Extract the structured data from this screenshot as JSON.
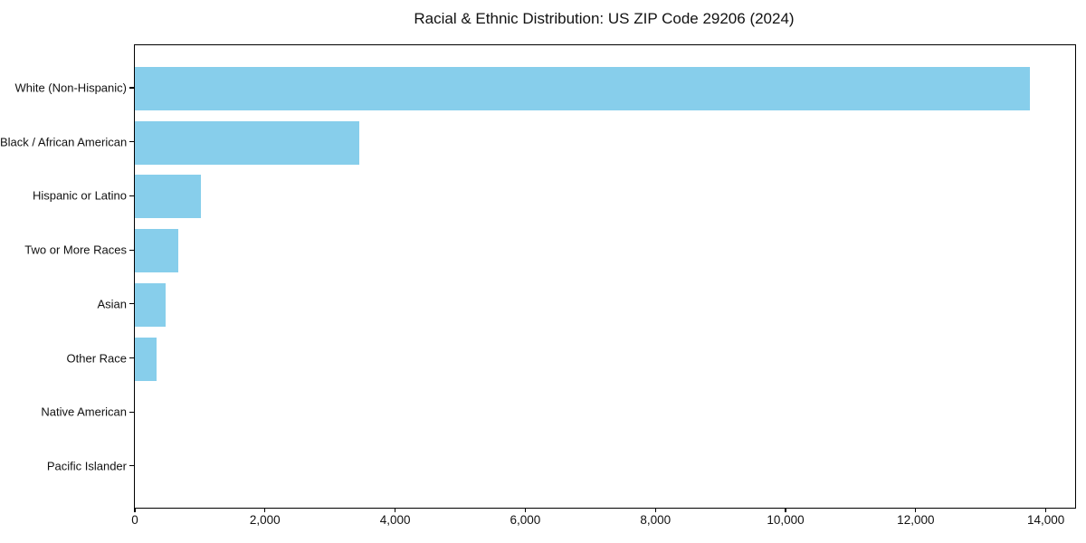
{
  "chart_data": {
    "type": "bar",
    "orientation": "horizontal",
    "title": "Racial & Ethnic Distribution: US ZIP Code 29206 (2024)",
    "categories": [
      "White (Non-Hispanic)",
      "Black / African American",
      "Hispanic or Latino",
      "Two or More Races",
      "Asian",
      "Other Race",
      "Native American",
      "Pacific Islander"
    ],
    "values": [
      13750,
      3450,
      1015,
      670,
      475,
      335,
      0,
      0
    ],
    "xlabel": "",
    "ylabel": "",
    "xlim": [
      0,
      14450
    ],
    "x_ticks": [
      0,
      2000,
      4000,
      6000,
      8000,
      10000,
      12000,
      14000
    ],
    "x_tick_labels": [
      "0",
      "2,000",
      "4,000",
      "6,000",
      "8,000",
      "10,000",
      "12,000",
      "14,000"
    ],
    "grid": false,
    "legend_position": "none",
    "bar_color": "#87CEEB",
    "frame_color": "#000000",
    "text_color": "#111111",
    "background_color": "#ffffff"
  }
}
